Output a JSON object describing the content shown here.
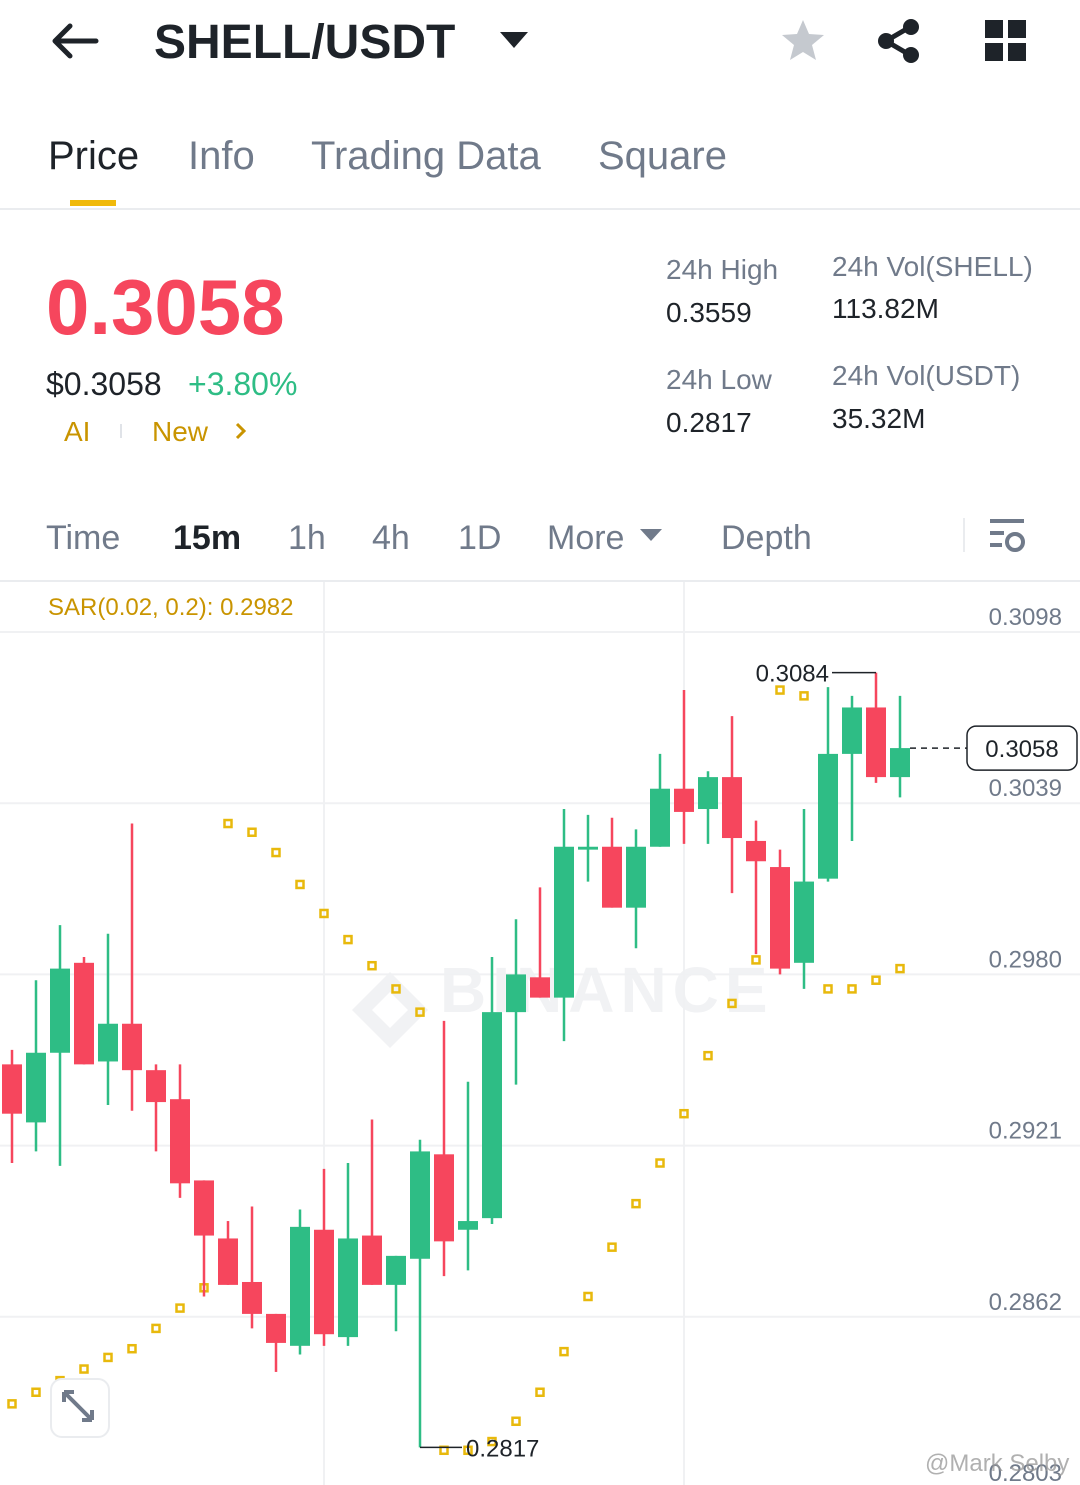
{
  "header": {
    "title": "SHELL/USDT"
  },
  "tabs": [
    "Price",
    "Info",
    "Trading Data",
    "Square"
  ],
  "price": {
    "last": "0.3058",
    "fiat": "$0.3058",
    "change": "+3.80%",
    "tags": [
      "AI",
      "New"
    ]
  },
  "stats": [
    {
      "label": "24h High",
      "value": "0.3559"
    },
    {
      "label": "24h Vol(SHELL)",
      "value": "113.82M"
    },
    {
      "label": "24h Low",
      "value": "0.2817"
    },
    {
      "label": "24h Vol(USDT)",
      "value": "35.32M"
    }
  ],
  "intervals": [
    "Time",
    "15m",
    "1h",
    "4h",
    "1D",
    "More",
    "Depth"
  ],
  "watermark": "BINANCE",
  "credit": "@Mark Selby",
  "chart_data": {
    "type": "candlestick",
    "indicator_label": "SAR(0.02, 0.2): 0.2982",
    "up_color": "#2ebd85",
    "down_color": "#f6465d",
    "sar_color": "#e8b90c",
    "grid": true,
    "ylim": [
      0.28,
      0.3115
    ],
    "yticks": [
      0.3098,
      0.3039,
      {
        "value": 0.298,
        "label": "0.2980"
      },
      0.2921,
      0.2862,
      0.2803
    ],
    "open": [
      0.2949,
      0.2929,
      0.2953,
      0.2984,
      0.295,
      0.2963,
      0.2947,
      0.2937,
      0.2909,
      0.2889,
      0.2874,
      0.2863,
      0.2852,
      0.2892,
      0.2855,
      0.289,
      0.2873,
      0.2882,
      0.2918,
      0.2892,
      0.2896,
      0.2967,
      0.2979,
      0.2972,
      0.3023,
      0.3024,
      0.3003,
      0.3024,
      0.3044,
      0.3037,
      0.3048,
      0.3026,
      0.3017,
      0.2984,
      0.3013,
      0.3056,
      0.3072,
      0.3048
    ],
    "high": [
      0.2954,
      0.2978,
      0.2997,
      0.2986,
      0.2994,
      0.3032,
      0.2949,
      0.2949,
      0.2909,
      0.2895,
      0.29,
      0.2863,
      0.2899,
      0.2913,
      0.2915,
      0.293,
      0.2883,
      0.2923,
      0.2964,
      0.2943,
      0.2986,
      0.2999,
      0.301,
      0.3037,
      0.3035,
      0.3034,
      0.303,
      0.3056,
      0.3078,
      0.305,
      0.3069,
      0.3033,
      0.3023,
      0.3037,
      0.3079,
      0.3076,
      0.3084,
      0.3076
    ],
    "low": [
      0.2915,
      0.2919,
      0.2914,
      0.2949,
      0.2935,
      0.2933,
      0.2919,
      0.2903,
      0.2869,
      0.2873,
      0.2858,
      0.2843,
      0.2849,
      0.2852,
      0.2852,
      0.2873,
      0.2857,
      0.2817,
      0.2876,
      0.2878,
      0.2894,
      0.2942,
      0.2972,
      0.2957,
      0.3012,
      0.3003,
      0.2989,
      0.3024,
      0.3025,
      0.3025,
      0.3008,
      0.2987,
      0.298,
      0.2975,
      0.3012,
      0.3026,
      0.3046,
      0.3041
    ],
    "close": [
      0.2932,
      0.2953,
      0.2982,
      0.2949,
      0.2963,
      0.2947,
      0.2936,
      0.2908,
      0.289,
      0.2873,
      0.2863,
      0.2853,
      0.2893,
      0.2856,
      0.2889,
      0.2873,
      0.2883,
      0.2919,
      0.2888,
      0.2895,
      0.2967,
      0.298,
      0.2972,
      0.3024,
      0.3024,
      0.3003,
      0.3024,
      0.3044,
      0.3036,
      0.3048,
      0.3027,
      0.3019,
      0.2982,
      0.3012,
      0.3056,
      0.3072,
      0.3048,
      0.3058
    ],
    "sar": [
      0.2832,
      0.2836,
      0.284,
      0.2844,
      0.2848,
      0.2851,
      0.2858,
      0.2865,
      0.2872,
      0.3032,
      0.3029,
      0.3022,
      0.3011,
      0.3001,
      0.2992,
      0.2983,
      0.2975,
      0.2967,
      0.2816,
      0.2816,
      0.2819,
      0.2826,
      0.2836,
      0.285,
      0.2869,
      0.2886,
      0.2901,
      0.2915,
      0.2932,
      0.2952,
      0.297,
      0.2985,
      0.3078,
      0.3076,
      0.2975,
      0.2975,
      0.2978,
      0.2982
    ],
    "max_value": 0.3084,
    "max_index": 36,
    "min_value": 0.2817,
    "min_index": 17,
    "last_price": 0.3058
  }
}
